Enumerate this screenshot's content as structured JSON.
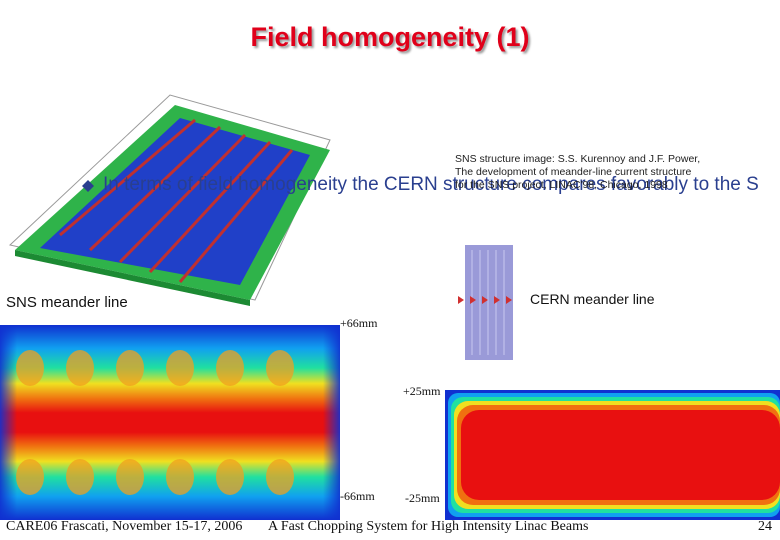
{
  "title": "Field homogeneity (1)",
  "bullet": "In terms of field homogeneity the CERN structure compares favorably to the S",
  "reference": {
    "lines": [
      "SNS structure image: S.S. Kurennoy and J.F. Power,",
      "The development of meander-line current structure",
      "for the SNS project, LINAC'98, Chicago, 1998"
    ]
  },
  "labels": {
    "sns": "SNS meander line",
    "cern": "CERN meander line"
  },
  "sns_map": {
    "top": "+66mm",
    "bottom": "-66mm"
  },
  "cern_map": {
    "top": "+25mm",
    "bottom": "-25mm"
  },
  "footer": {
    "left": "CARE06 Frascati, November 15-17, 2006",
    "center": "A Fast Chopping System for High Intensity Linac Beams",
    "page": "24"
  }
}
